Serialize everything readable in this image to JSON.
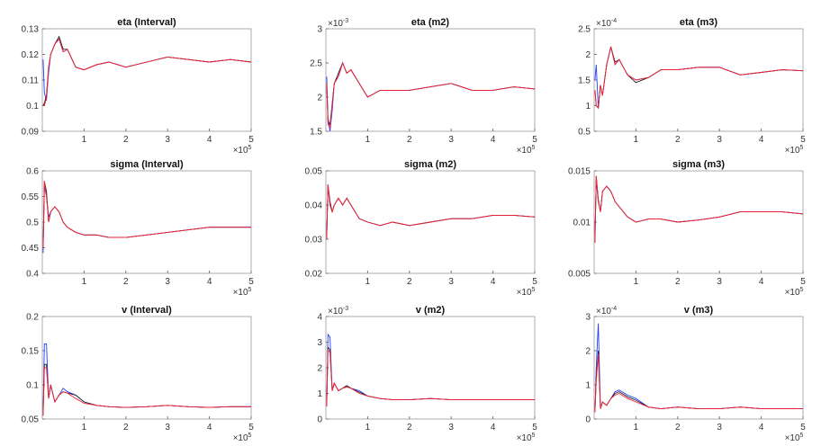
{
  "chart_data": [
    {
      "type": "line",
      "title": "eta (Interval)",
      "x": [
        0.02,
        0.05,
        0.1,
        0.15,
        0.2,
        0.3,
        0.4,
        0.5,
        0.6,
        0.8,
        1,
        1.3,
        1.6,
        2,
        2.5,
        3,
        3.5,
        4,
        4.5,
        5
      ],
      "xlim": [
        0,
        5
      ],
      "xticks": [
        1,
        2,
        3,
        4,
        5
      ],
      "ylim": [
        0.09,
        0.13
      ],
      "yticks": [
        0.09,
        0.1,
        0.11,
        0.12,
        0.13
      ],
      "x_scale_label": "×10",
      "x_scale_power": "5",
      "series": [
        {
          "color": "#1f3fff",
          "values": [
            0.118,
            0.105,
            0.102,
            0.113,
            0.12,
            0.124,
            0.126,
            0.121,
            0.122,
            0.115,
            0.114,
            0.116,
            0.117,
            0.115,
            0.117,
            0.119,
            0.118,
            0.117,
            0.118,
            0.117
          ]
        },
        {
          "color": "#222222",
          "values": [
            0.1,
            0.101,
            0.104,
            0.115,
            0.12,
            0.124,
            0.127,
            0.122,
            0.122,
            0.115,
            0.114,
            0.116,
            0.117,
            0.115,
            0.117,
            0.119,
            0.118,
            0.117,
            0.118,
            0.117
          ]
        },
        {
          "color": "#ff2030",
          "values": [
            0.1,
            0.1,
            0.103,
            0.115,
            0.12,
            0.124,
            0.126,
            0.121,
            0.122,
            0.115,
            0.114,
            0.116,
            0.117,
            0.115,
            0.117,
            0.119,
            0.118,
            0.117,
            0.118,
            0.117
          ]
        }
      ]
    },
    {
      "type": "line",
      "title": "eta (m2)",
      "x": [
        0.02,
        0.05,
        0.1,
        0.15,
        0.2,
        0.3,
        0.4,
        0.5,
        0.6,
        0.8,
        1,
        1.3,
        1.6,
        2,
        2.5,
        3,
        3.5,
        4,
        4.5,
        5
      ],
      "xlim": [
        0,
        5
      ],
      "xticks": [
        1,
        2,
        3,
        4,
        5
      ],
      "ylim": [
        1.5,
        3
      ],
      "yticks": [
        1.5,
        2,
        2.5,
        3
      ],
      "x_scale_label": "×10",
      "x_scale_power": "5",
      "y_scale_label": "×10",
      "y_scale_power": "-3",
      "series": [
        {
          "color": "#1f3fff",
          "values": [
            2.3,
            1.7,
            1.5,
            1.8,
            2.2,
            2.3,
            2.5,
            2.35,
            2.4,
            2.2,
            2.0,
            2.1,
            2.1,
            2.1,
            2.15,
            2.2,
            2.1,
            2.1,
            2.15,
            2.12
          ]
        },
        {
          "color": "#222222",
          "values": [
            2.2,
            1.65,
            1.6,
            1.9,
            2.2,
            2.35,
            2.5,
            2.35,
            2.4,
            2.2,
            2.0,
            2.1,
            2.1,
            2.1,
            2.15,
            2.2,
            2.1,
            2.1,
            2.15,
            2.12
          ]
        },
        {
          "color": "#ff2030",
          "values": [
            2.2,
            1.6,
            1.55,
            1.9,
            2.2,
            2.3,
            2.5,
            2.35,
            2.4,
            2.2,
            2.0,
            2.1,
            2.1,
            2.1,
            2.15,
            2.2,
            2.1,
            2.1,
            2.15,
            2.12
          ]
        }
      ]
    },
    {
      "type": "line",
      "title": "eta (m3)",
      "x": [
        0.02,
        0.05,
        0.1,
        0.15,
        0.2,
        0.3,
        0.4,
        0.5,
        0.6,
        0.8,
        1,
        1.3,
        1.6,
        2,
        2.5,
        3,
        3.5,
        4,
        4.5,
        5
      ],
      "xlim": [
        0,
        5
      ],
      "xticks": [
        1,
        2,
        3,
        4,
        5
      ],
      "ylim": [
        0.5,
        2.5
      ],
      "yticks": [
        0.5,
        1,
        1.5,
        2,
        2.5
      ],
      "x_scale_label": "×10",
      "x_scale_power": "5",
      "y_scale_label": "×10",
      "y_scale_power": "-4",
      "series": [
        {
          "color": "#1f3fff",
          "values": [
            1.5,
            1.8,
            0.95,
            1.4,
            1.2,
            1.8,
            2.15,
            1.8,
            1.9,
            1.6,
            1.5,
            1.55,
            1.7,
            1.7,
            1.75,
            1.75,
            1.6,
            1.65,
            1.7,
            1.68
          ]
        },
        {
          "color": "#222222",
          "values": [
            1.3,
            1.0,
            0.95,
            1.4,
            1.2,
            1.8,
            2.15,
            1.85,
            1.9,
            1.6,
            1.45,
            1.55,
            1.7,
            1.7,
            1.75,
            1.75,
            1.6,
            1.65,
            1.7,
            1.68
          ]
        },
        {
          "color": "#ff2030",
          "values": [
            1.3,
            1.0,
            0.95,
            1.4,
            1.2,
            1.8,
            2.15,
            1.8,
            1.9,
            1.6,
            1.5,
            1.55,
            1.7,
            1.7,
            1.75,
            1.75,
            1.6,
            1.65,
            1.7,
            1.68
          ]
        }
      ]
    },
    {
      "type": "line",
      "title": "sigma (Interval)",
      "x": [
        0.02,
        0.05,
        0.1,
        0.15,
        0.2,
        0.3,
        0.4,
        0.5,
        0.6,
        0.8,
        1,
        1.3,
        1.6,
        2,
        2.5,
        3,
        3.5,
        4,
        4.5,
        5
      ],
      "xlim": [
        0,
        5
      ],
      "xticks": [
        1,
        2,
        3,
        4,
        5
      ],
      "ylim": [
        0.4,
        0.6
      ],
      "yticks": [
        0.4,
        0.45,
        0.5,
        0.55,
        0.6
      ],
      "x_scale_label": "×10",
      "x_scale_power": "5",
      "series": [
        {
          "color": "#1f3fff",
          "values": [
            0.44,
            0.57,
            0.55,
            0.51,
            0.52,
            0.53,
            0.52,
            0.5,
            0.49,
            0.48,
            0.475,
            0.475,
            0.47,
            0.47,
            0.475,
            0.48,
            0.485,
            0.49,
            0.49,
            0.49
          ]
        },
        {
          "color": "#222222",
          "values": [
            0.45,
            0.58,
            0.56,
            0.5,
            0.52,
            0.53,
            0.52,
            0.5,
            0.49,
            0.48,
            0.475,
            0.475,
            0.47,
            0.47,
            0.475,
            0.48,
            0.485,
            0.49,
            0.49,
            0.49
          ]
        },
        {
          "color": "#ff2030",
          "values": [
            0.45,
            0.58,
            0.55,
            0.5,
            0.52,
            0.53,
            0.52,
            0.5,
            0.49,
            0.48,
            0.475,
            0.475,
            0.47,
            0.47,
            0.475,
            0.48,
            0.485,
            0.49,
            0.49,
            0.49
          ]
        }
      ]
    },
    {
      "type": "line",
      "title": "sigma (m2)",
      "x": [
        0.02,
        0.05,
        0.1,
        0.15,
        0.2,
        0.3,
        0.4,
        0.5,
        0.6,
        0.8,
        1,
        1.3,
        1.6,
        2,
        2.5,
        3,
        3.5,
        4,
        4.5,
        5
      ],
      "xlim": [
        0,
        5
      ],
      "xticks": [
        1,
        2,
        3,
        4,
        5
      ],
      "ylim": [
        0.02,
        0.05
      ],
      "yticks": [
        0.02,
        0.03,
        0.04,
        0.05
      ],
      "x_scale_label": "×10",
      "x_scale_power": "5",
      "series": [
        {
          "color": "#1f3fff",
          "values": [
            0.031,
            0.045,
            0.04,
            0.038,
            0.04,
            0.042,
            0.04,
            0.042,
            0.04,
            0.036,
            0.035,
            0.034,
            0.035,
            0.034,
            0.035,
            0.036,
            0.036,
            0.037,
            0.037,
            0.0365
          ]
        },
        {
          "color": "#222222",
          "values": [
            0.03,
            0.046,
            0.041,
            0.038,
            0.04,
            0.042,
            0.04,
            0.042,
            0.04,
            0.036,
            0.035,
            0.034,
            0.035,
            0.034,
            0.035,
            0.036,
            0.036,
            0.037,
            0.037,
            0.0365
          ]
        },
        {
          "color": "#ff2030",
          "values": [
            0.03,
            0.046,
            0.04,
            0.038,
            0.04,
            0.042,
            0.04,
            0.042,
            0.04,
            0.036,
            0.035,
            0.034,
            0.035,
            0.034,
            0.035,
            0.036,
            0.036,
            0.037,
            0.037,
            0.0365
          ]
        }
      ]
    },
    {
      "type": "line",
      "title": "sigma (m3)",
      "x": [
        0.02,
        0.05,
        0.1,
        0.15,
        0.2,
        0.3,
        0.4,
        0.5,
        0.6,
        0.8,
        1,
        1.3,
        1.6,
        2,
        2.5,
        3,
        3.5,
        4,
        4.5,
        5
      ],
      "xlim": [
        0,
        5
      ],
      "xticks": [
        1,
        2,
        3,
        4,
        5
      ],
      "ylim": [
        0.005,
        0.015
      ],
      "yticks": [
        0.005,
        0.01,
        0.015
      ],
      "x_scale_label": "×10",
      "x_scale_power": "5",
      "series": [
        {
          "color": "#1f3fff",
          "values": [
            0.009,
            0.014,
            0.012,
            0.011,
            0.013,
            0.0135,
            0.013,
            0.012,
            0.0115,
            0.0105,
            0.01,
            0.0103,
            0.0103,
            0.01,
            0.0102,
            0.0105,
            0.011,
            0.011,
            0.011,
            0.0108
          ]
        },
        {
          "color": "#222222",
          "values": [
            0.008,
            0.0145,
            0.0122,
            0.011,
            0.013,
            0.0135,
            0.013,
            0.012,
            0.0115,
            0.0105,
            0.01,
            0.0103,
            0.0103,
            0.01,
            0.0102,
            0.0105,
            0.011,
            0.011,
            0.011,
            0.0108
          ]
        },
        {
          "color": "#ff2030",
          "values": [
            0.008,
            0.0145,
            0.012,
            0.011,
            0.013,
            0.0135,
            0.013,
            0.012,
            0.0115,
            0.0105,
            0.01,
            0.0103,
            0.0103,
            0.01,
            0.0102,
            0.0105,
            0.011,
            0.011,
            0.011,
            0.0108
          ]
        }
      ]
    },
    {
      "type": "line",
      "title": "v (Interval)",
      "x": [
        0.02,
        0.05,
        0.1,
        0.15,
        0.2,
        0.3,
        0.4,
        0.5,
        0.6,
        0.8,
        1,
        1.3,
        1.6,
        2,
        2.5,
        3,
        3.5,
        4,
        4.5,
        5
      ],
      "xlim": [
        0,
        5
      ],
      "xticks": [
        1,
        2,
        3,
        4,
        5
      ],
      "ylim": [
        0.05,
        0.2
      ],
      "yticks": [
        0.05,
        0.1,
        0.15,
        0.2
      ],
      "x_scale_label": "×10",
      "x_scale_power": "5",
      "series": [
        {
          "color": "#1f3fff",
          "values": [
            0.06,
            0.16,
            0.16,
            0.08,
            0.1,
            0.075,
            0.085,
            0.095,
            0.09,
            0.085,
            0.075,
            0.07,
            0.068,
            0.067,
            0.068,
            0.07,
            0.068,
            0.067,
            0.068,
            0.068
          ]
        },
        {
          "color": "#222222",
          "values": [
            0.055,
            0.13,
            0.13,
            0.08,
            0.1,
            0.075,
            0.085,
            0.09,
            0.088,
            0.085,
            0.075,
            0.07,
            0.068,
            0.067,
            0.068,
            0.07,
            0.068,
            0.067,
            0.068,
            0.068
          ]
        },
        {
          "color": "#ff2030",
          "values": [
            0.055,
            0.125,
            0.125,
            0.08,
            0.1,
            0.075,
            0.085,
            0.09,
            0.088,
            0.08,
            0.073,
            0.07,
            0.068,
            0.067,
            0.068,
            0.07,
            0.068,
            0.067,
            0.068,
            0.068
          ]
        }
      ]
    },
    {
      "type": "line",
      "title": "v (m2)",
      "x": [
        0.02,
        0.05,
        0.1,
        0.15,
        0.2,
        0.3,
        0.4,
        0.5,
        0.6,
        0.8,
        1,
        1.3,
        1.6,
        2,
        2.5,
        3,
        3.5,
        4,
        4.5,
        5
      ],
      "xlim": [
        0,
        5
      ],
      "xticks": [
        1,
        2,
        3,
        4,
        5
      ],
      "ylim": [
        0,
        4
      ],
      "yticks": [
        0,
        1,
        2,
        3,
        4
      ],
      "x_scale_label": "×10",
      "x_scale_power": "5",
      "y_scale_label": "×10",
      "y_scale_power": "-3",
      "series": [
        {
          "color": "#1f3fff",
          "values": [
            0.5,
            3.3,
            3.2,
            1.1,
            1.4,
            1.1,
            1.2,
            1.3,
            1.2,
            1.1,
            0.9,
            0.8,
            0.75,
            0.75,
            0.8,
            0.75,
            0.75,
            0.75,
            0.75,
            0.75
          ]
        },
        {
          "color": "#222222",
          "values": [
            0.5,
            2.8,
            2.7,
            1.1,
            1.4,
            1.1,
            1.2,
            1.3,
            1.2,
            1.05,
            0.9,
            0.8,
            0.75,
            0.75,
            0.8,
            0.75,
            0.75,
            0.75,
            0.75,
            0.75
          ]
        },
        {
          "color": "#ff2030",
          "values": [
            0.5,
            2.7,
            2.6,
            1.1,
            1.4,
            1.1,
            1.2,
            1.25,
            1.2,
            1.0,
            0.9,
            0.8,
            0.75,
            0.75,
            0.8,
            0.75,
            0.75,
            0.75,
            0.75,
            0.75
          ]
        }
      ]
    },
    {
      "type": "line",
      "title": "v (m3)",
      "x": [
        0.02,
        0.05,
        0.1,
        0.15,
        0.2,
        0.3,
        0.4,
        0.5,
        0.6,
        0.8,
        1,
        1.3,
        1.6,
        2,
        2.5,
        3,
        3.5,
        4,
        4.5,
        5
      ],
      "xlim": [
        0,
        5
      ],
      "xticks": [
        1,
        2,
        3,
        4,
        5
      ],
      "ylim": [
        0,
        3
      ],
      "yticks": [
        0,
        1,
        2,
        3
      ],
      "x_scale_label": "×10",
      "x_scale_power": "5",
      "y_scale_label": "×10",
      "y_scale_power": "-4",
      "series": [
        {
          "color": "#1f3fff",
          "values": [
            0.2,
            1.5,
            2.8,
            0.3,
            0.5,
            0.4,
            0.6,
            0.8,
            0.85,
            0.7,
            0.6,
            0.35,
            0.3,
            0.35,
            0.3,
            0.3,
            0.35,
            0.3,
            0.3,
            0.3
          ]
        },
        {
          "color": "#222222",
          "values": [
            0.2,
            1.2,
            2.0,
            0.3,
            0.5,
            0.4,
            0.6,
            0.75,
            0.8,
            0.65,
            0.55,
            0.35,
            0.3,
            0.35,
            0.3,
            0.3,
            0.35,
            0.3,
            0.3,
            0.3
          ]
        },
        {
          "color": "#ff2030",
          "values": [
            0.2,
            1.1,
            1.9,
            0.3,
            0.5,
            0.4,
            0.6,
            0.7,
            0.75,
            0.6,
            0.5,
            0.35,
            0.3,
            0.35,
            0.3,
            0.3,
            0.35,
            0.3,
            0.3,
            0.3
          ]
        }
      ]
    }
  ]
}
